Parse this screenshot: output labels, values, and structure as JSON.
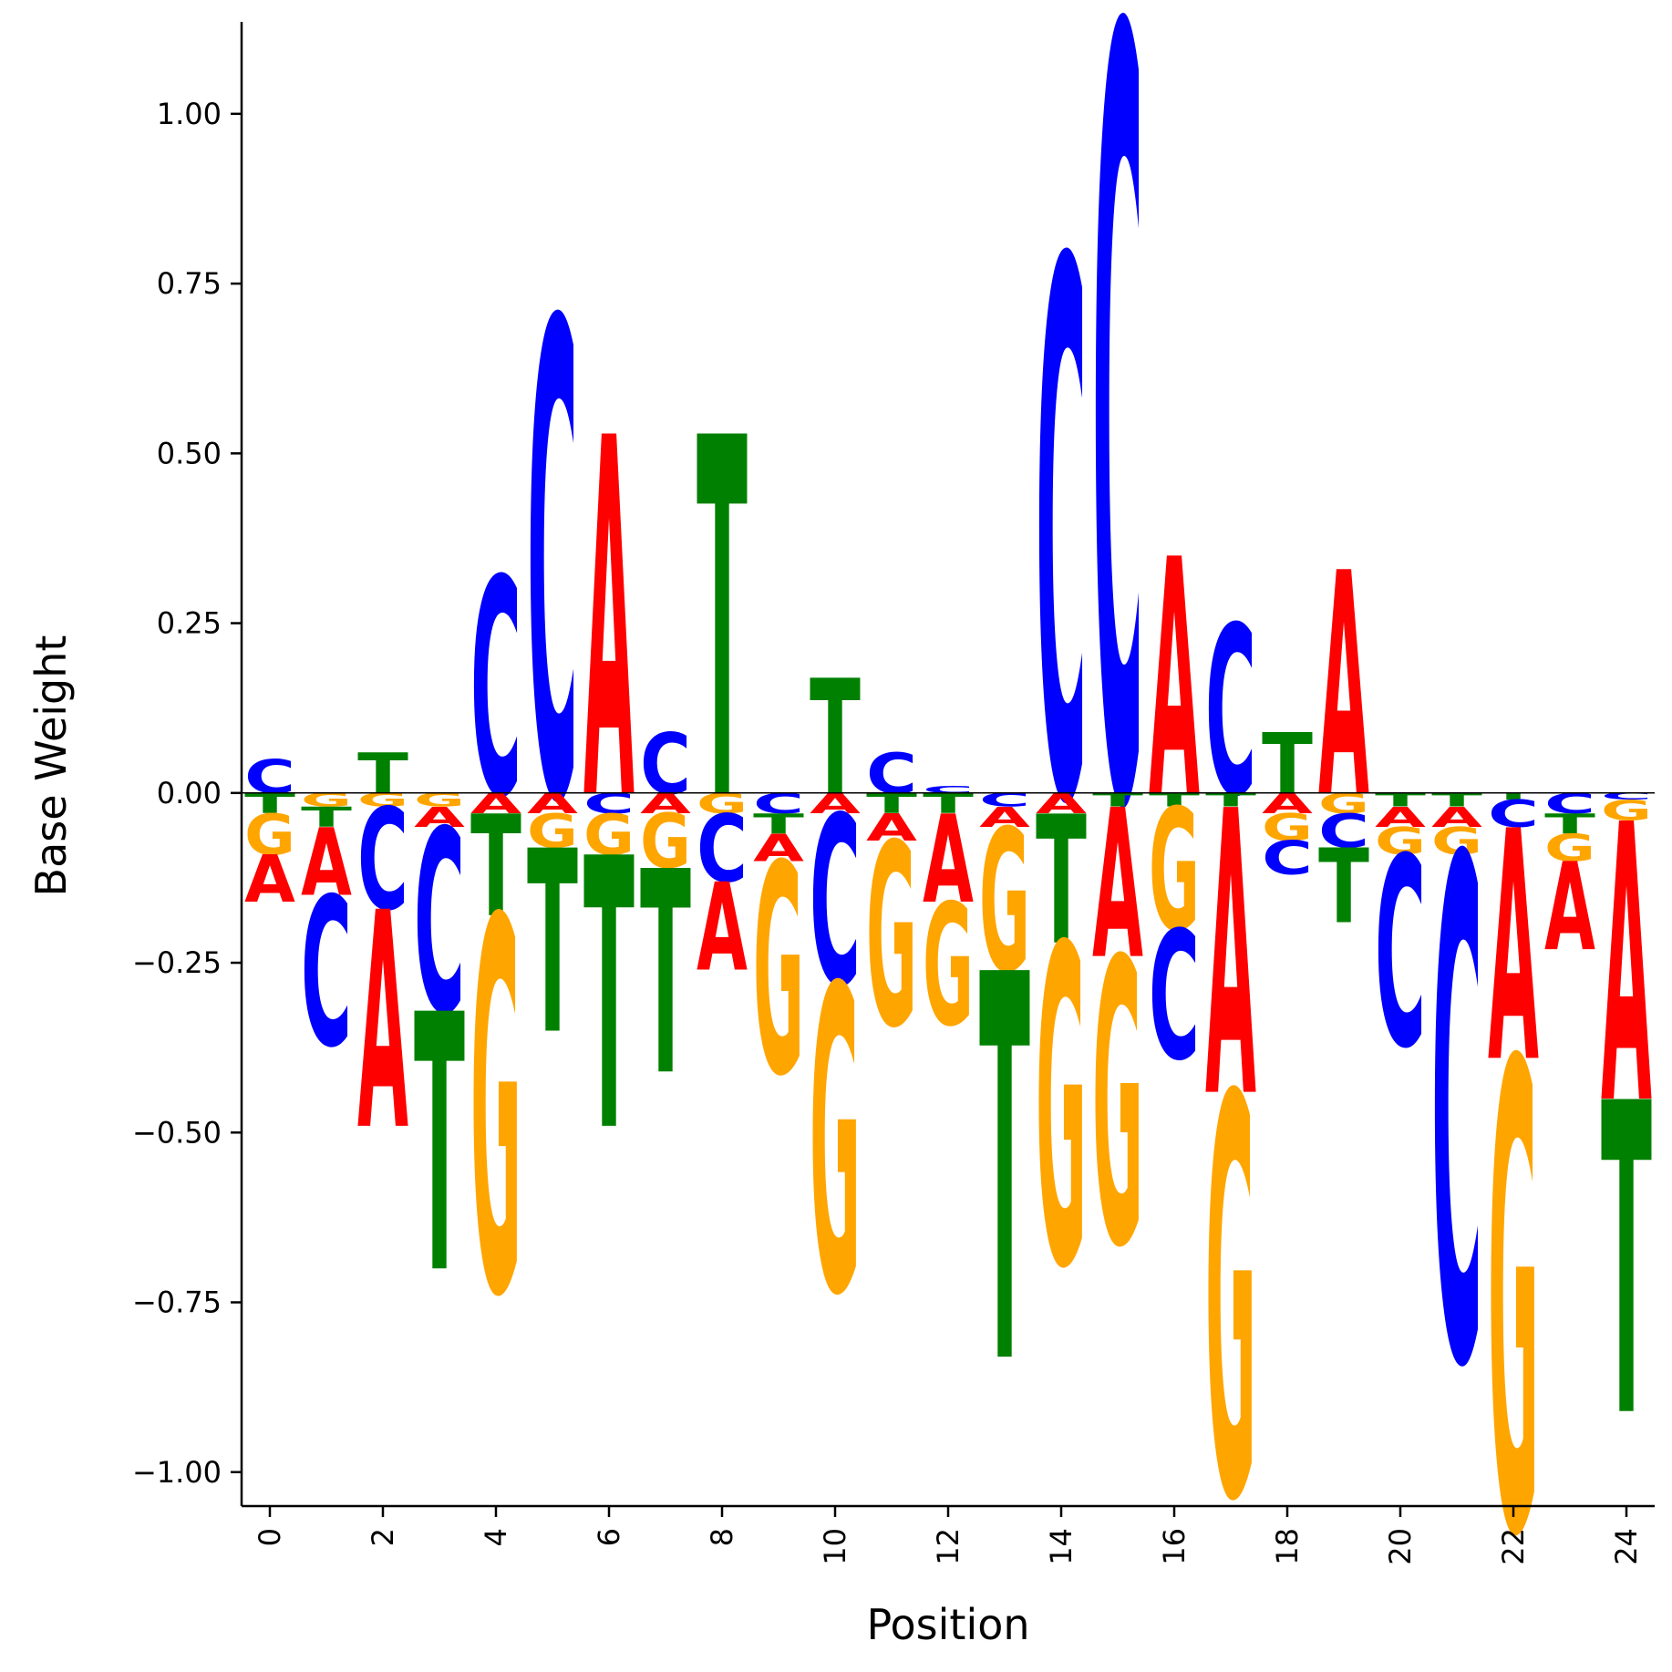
{
  "chart_data": {
    "type": "sequence-logo",
    "xlabel": "Position",
    "ylabel": "Base Weight",
    "xlim": [
      -0.5,
      24.5
    ],
    "ylim": [
      -1.05,
      1.13
    ],
    "xticks": [
      0,
      2,
      4,
      6,
      8,
      10,
      12,
      14,
      16,
      18,
      20,
      22,
      24
    ],
    "yticks": [
      -1.0,
      -0.75,
      -0.5,
      -0.25,
      0.0,
      0.25,
      0.5,
      0.75,
      1.0
    ],
    "ytick_labels": [
      "−1.00",
      "−0.75",
      "−0.50",
      "−0.25",
      "0.00",
      "0.25",
      "0.50",
      "0.75",
      "1.00"
    ],
    "base_colors": {
      "A": "#ff0000",
      "C": "#0000ff",
      "G": "#ffa500",
      "T": "#008000"
    },
    "positions": [
      {
        "pos": 0,
        "A": -0.07,
        "C": 0.05,
        "G": -0.06,
        "T": -0.03
      },
      {
        "pos": 1,
        "A": -0.1,
        "C": -0.22,
        "G": -0.02,
        "T": -0.03
      },
      {
        "pos": 2,
        "A": -0.32,
        "C": -0.15,
        "G": -0.02,
        "T": 0.06
      },
      {
        "pos": 3,
        "A": -0.03,
        "C": -0.27,
        "G": -0.02,
        "T": -0.38
      },
      {
        "pos": 4,
        "A": -0.03,
        "C": 0.32,
        "G": -0.55,
        "T": -0.15
      },
      {
        "pos": 5,
        "A": -0.03,
        "C": 0.7,
        "G": -0.05,
        "T": -0.27
      },
      {
        "pos": 6,
        "A": 0.53,
        "C": -0.03,
        "G": -0.06,
        "T": -0.4
      },
      {
        "pos": 7,
        "A": -0.03,
        "C": 0.09,
        "G": -0.08,
        "T": -0.3
      },
      {
        "pos": 8,
        "A": -0.13,
        "C": -0.1,
        "G": -0.03,
        "T": 0.53
      },
      {
        "pos": 9,
        "A": -0.04,
        "C": -0.03,
        "G": -0.31,
        "T": -0.03
      },
      {
        "pos": 10,
        "A": -0.03,
        "C": -0.25,
        "G": -0.45,
        "T": 0.17
      },
      {
        "pos": 11,
        "A": -0.04,
        "C": 0.06,
        "G": -0.27,
        "T": -0.03
      },
      {
        "pos": 12,
        "A": -0.13,
        "C": 0.01,
        "G": -0.18,
        "T": -0.03
      },
      {
        "pos": 13,
        "A": -0.03,
        "C": -0.02,
        "G": -0.21,
        "T": -0.57
      },
      {
        "pos": 14,
        "A": -0.03,
        "C": 0.79,
        "G": -0.47,
        "T": -0.19
      },
      {
        "pos": 15,
        "A": -0.22,
        "C": 1.13,
        "G": -0.42,
        "T": -0.02
      },
      {
        "pos": 16,
        "A": 0.35,
        "C": -0.19,
        "G": -0.18,
        "T": -0.02
      },
      {
        "pos": 17,
        "A": -0.42,
        "C": 0.25,
        "G": -0.59,
        "T": -0.02
      },
      {
        "pos": 18,
        "A": -0.03,
        "C": -0.05,
        "G": -0.04,
        "T": 0.09
      },
      {
        "pos": 19,
        "A": 0.33,
        "C": -0.05,
        "G": -0.03,
        "T": -0.11
      },
      {
        "pos": 20,
        "A": -0.03,
        "C": -0.28,
        "G": -0.04,
        "T": -0.02
      },
      {
        "pos": 21,
        "A": -0.03,
        "C": -0.74,
        "G": -0.04,
        "T": -0.02
      },
      {
        "pos": 22,
        "A": -0.34,
        "C": -0.04,
        "G": -0.69,
        "T": -0.01
      },
      {
        "pos": 23,
        "A": -0.13,
        "C": -0.03,
        "G": -0.04,
        "T": -0.03
      },
      {
        "pos": 24,
        "A": -0.41,
        "C": -0.01,
        "G": -0.03,
        "T": -0.46
      }
    ]
  }
}
